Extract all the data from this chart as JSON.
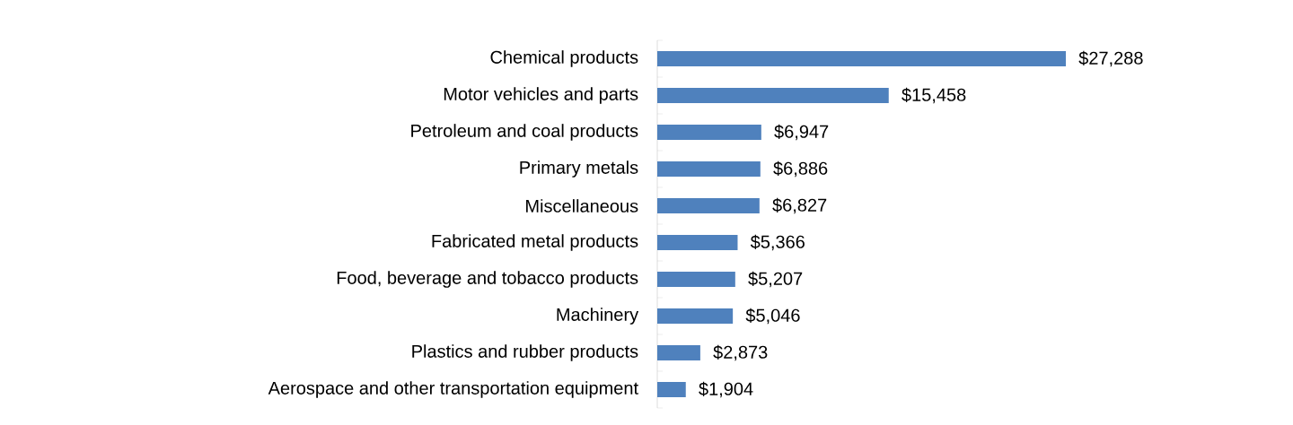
{
  "chart_data": {
    "type": "bar",
    "orientation": "horizontal",
    "color": "#4f81bd",
    "categories": [
      "Chemical products",
      "Motor vehicles and parts",
      "Petroleum and coal products",
      "Primary metals",
      "Miscellaneous",
      "Fabricated metal products",
      "Food, beverage and tobacco products",
      "Machinery",
      "Plastics and rubber products",
      "Aerospace and other transportation equipment"
    ],
    "values": [
      27288,
      15458,
      6947,
      6886,
      6827,
      5366,
      5207,
      5046,
      2873,
      1904
    ],
    "value_labels": [
      "$27,288",
      "$15,458",
      "$6,947",
      "$6,886",
      "$6,827",
      "$5,366",
      "$5,207",
      "$5,046",
      "$2,873",
      "$1,904"
    ],
    "tick_labels": "y"
  }
}
